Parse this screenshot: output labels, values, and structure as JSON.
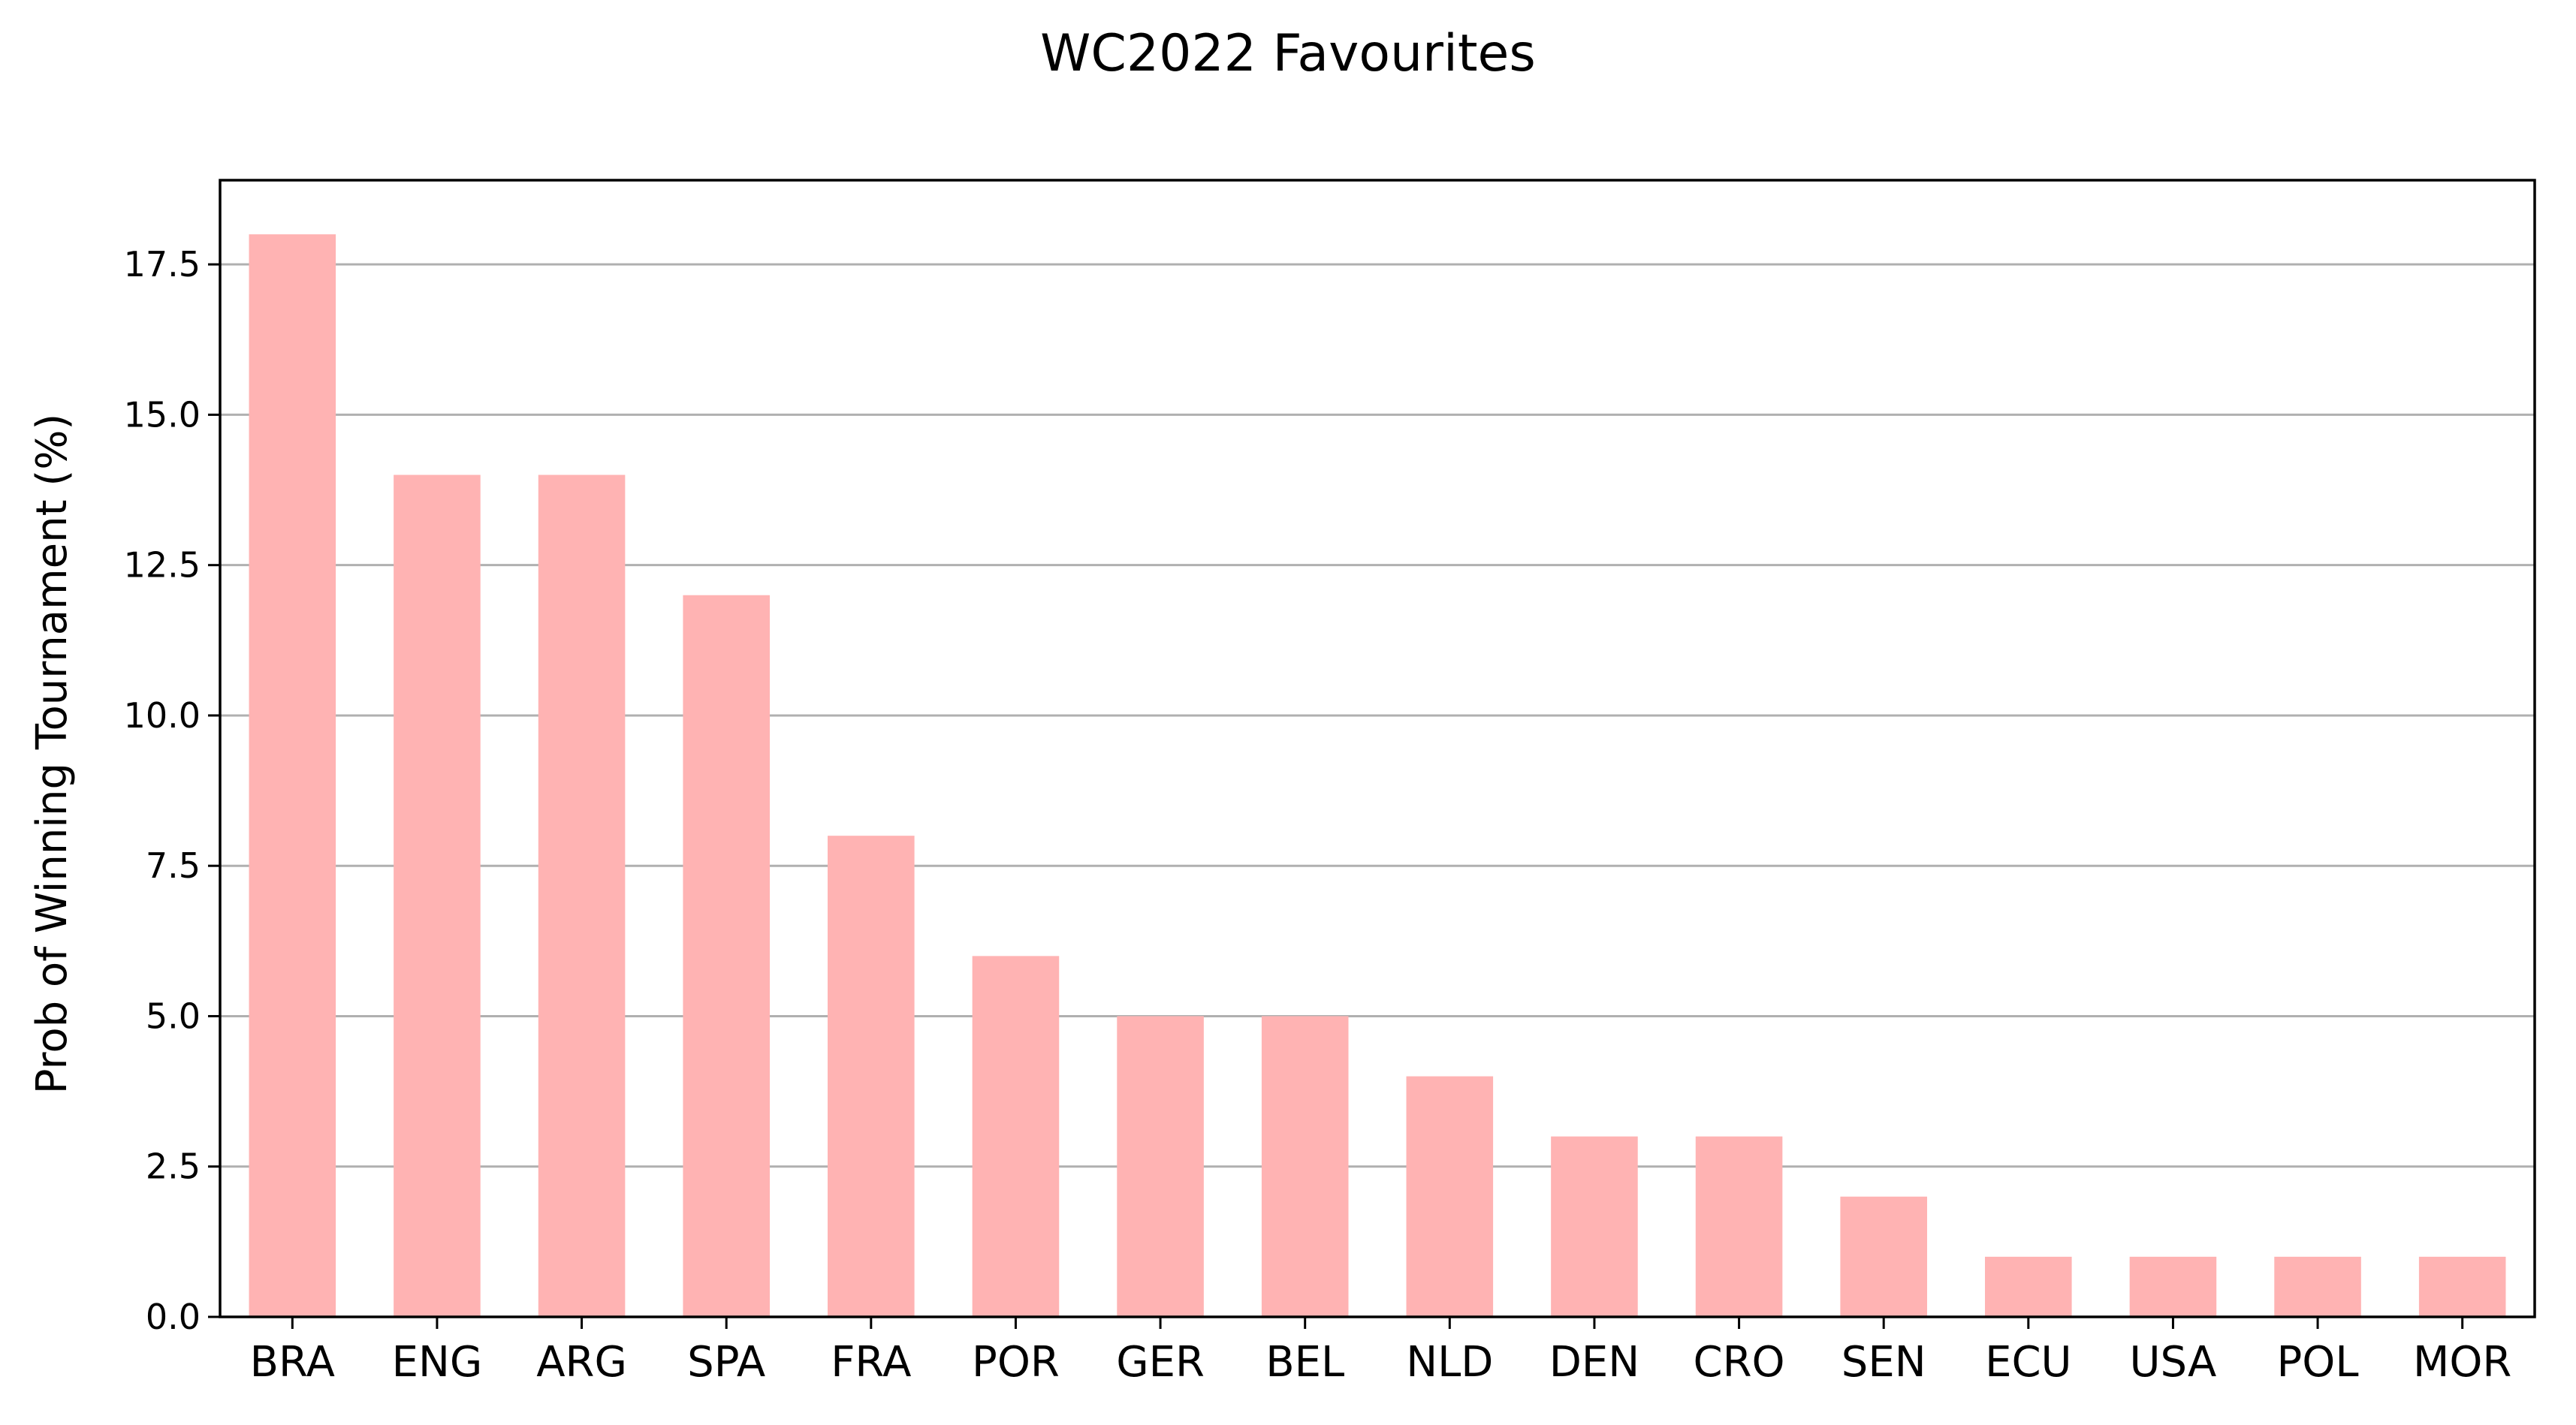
{
  "chart_data": {
    "type": "bar",
    "title": "WC2022 Favourites",
    "xlabel": "",
    "ylabel": "Prob of Winning Tournament (%)",
    "categories": [
      "BRA",
      "ENG",
      "ARG",
      "SPA",
      "FRA",
      "POR",
      "GER",
      "BEL",
      "NLD",
      "DEN",
      "CRO",
      "SEN",
      "ECU",
      "USA",
      "POL",
      "MOR"
    ],
    "values": [
      18,
      14,
      14,
      12,
      8,
      6,
      5,
      5,
      4,
      3,
      3,
      2,
      1,
      1,
      1,
      1
    ],
    "ylim": [
      0,
      18.9
    ],
    "yticks": [
      "0.0",
      "2.5",
      "5.0",
      "7.5",
      "10.0",
      "12.5",
      "15.0",
      "17.5"
    ],
    "grid": "y",
    "legend": "none",
    "bar_color": "#ffb3b3",
    "grid_color": "#b0b0b0"
  }
}
